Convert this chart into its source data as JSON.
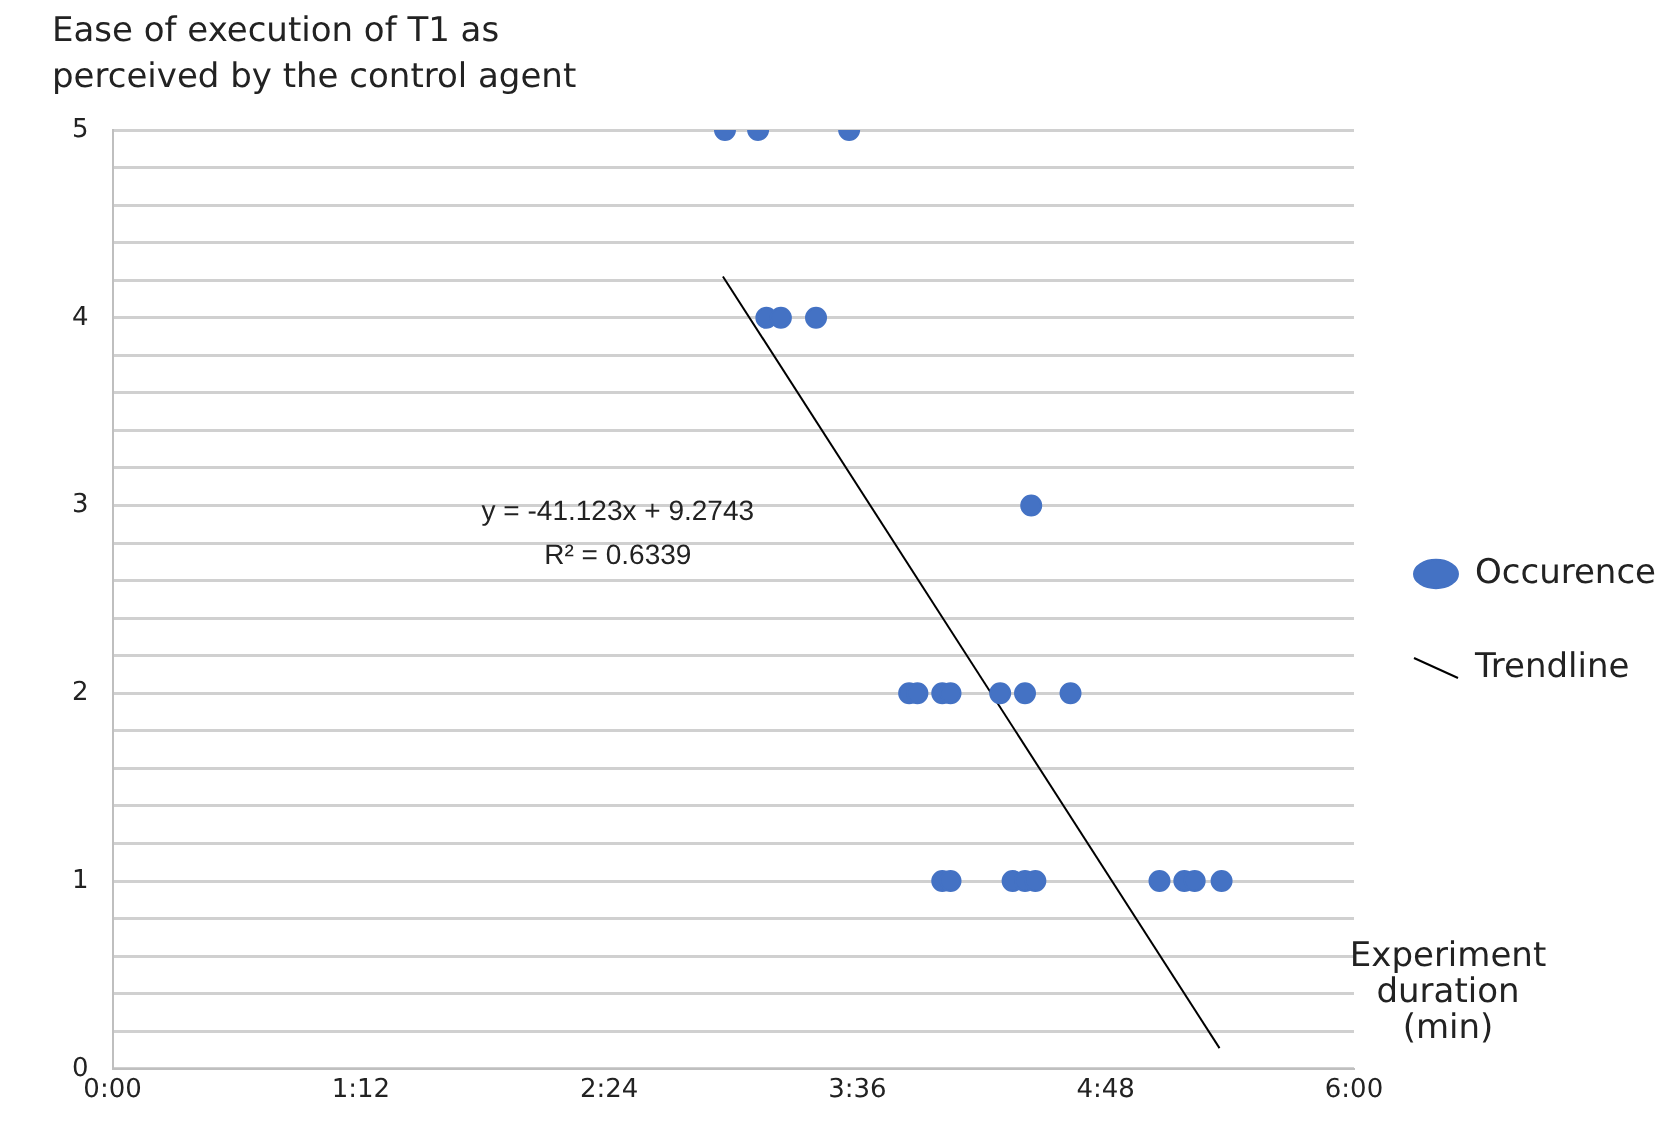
{
  "chart_data": {
    "type": "scatter",
    "ylabel": "Ease of execution of T1 as\nperceived by the control agent",
    "xlabel": "Experiment\nduration\n(min)",
    "annotations": [
      "y = -41.123x + 9.2743",
      "R² = 0.6339"
    ],
    "series": [
      {
        "name": "Occurence",
        "marker": "circle",
        "color": "#4472c4",
        "x": [
          2.96,
          3.12,
          3.56,
          3.16,
          3.23,
          3.4,
          4.44,
          3.85,
          3.89,
          4.01,
          4.05,
          4.29,
          4.41,
          4.63,
          4.01,
          4.05,
          4.35,
          4.41,
          4.46,
          5.06,
          5.18,
          5.23,
          5.36
        ],
        "values": [
          5,
          5,
          5,
          4,
          4,
          4,
          3,
          2,
          2,
          2,
          2,
          2,
          2,
          2,
          1,
          1,
          1,
          1,
          1,
          1,
          1,
          1,
          1
        ]
      },
      {
        "name": "Trendline",
        "type": "line",
        "marker": "none",
        "color": "#000000",
        "x": [
          2.95,
          5.35
        ],
        "values": [
          4.22,
          0.11
        ]
      }
    ],
    "xlim": [
      0,
      6
    ],
    "xticks": [
      {
        "value": 0,
        "label": "0:00"
      },
      {
        "value": 1.2,
        "label": "1:12"
      },
      {
        "value": 2.4,
        "label": "2:24"
      },
      {
        "value": 3.6,
        "label": "3:36"
      },
      {
        "value": 4.8,
        "label": "4:48"
      },
      {
        "value": 6,
        "label": "6:00"
      }
    ],
    "ylim": [
      0,
      5
    ],
    "yticks": [
      0,
      {
        "value": 0.2,
        "label": null
      },
      {
        "value": 0.4,
        "label": null
      },
      {
        "value": 0.6,
        "label": null
      },
      {
        "value": 0.8,
        "label": null
      },
      1,
      {
        "value": 1.2,
        "label": null
      },
      {
        "value": 1.4,
        "label": null
      },
      {
        "value": 1.6,
        "label": null
      },
      {
        "value": 1.8,
        "label": null
      },
      2,
      {
        "value": 2.2,
        "label": null
      },
      {
        "value": 2.4,
        "label": null
      },
      {
        "value": 2.6,
        "label": null
      },
      {
        "value": 2.8,
        "label": null
      },
      3,
      {
        "value": 3.2,
        "label": null
      },
      {
        "value": 3.4,
        "label": null
      },
      {
        "value": 3.6,
        "label": null
      },
      {
        "value": 3.8,
        "label": null
      },
      4,
      {
        "value": 4.2,
        "label": null
      },
      {
        "value": 4.4,
        "label": null
      },
      {
        "value": 4.6,
        "label": null
      },
      {
        "value": 4.8,
        "label": null
      },
      5
    ],
    "grid": "y",
    "legend": "right"
  }
}
